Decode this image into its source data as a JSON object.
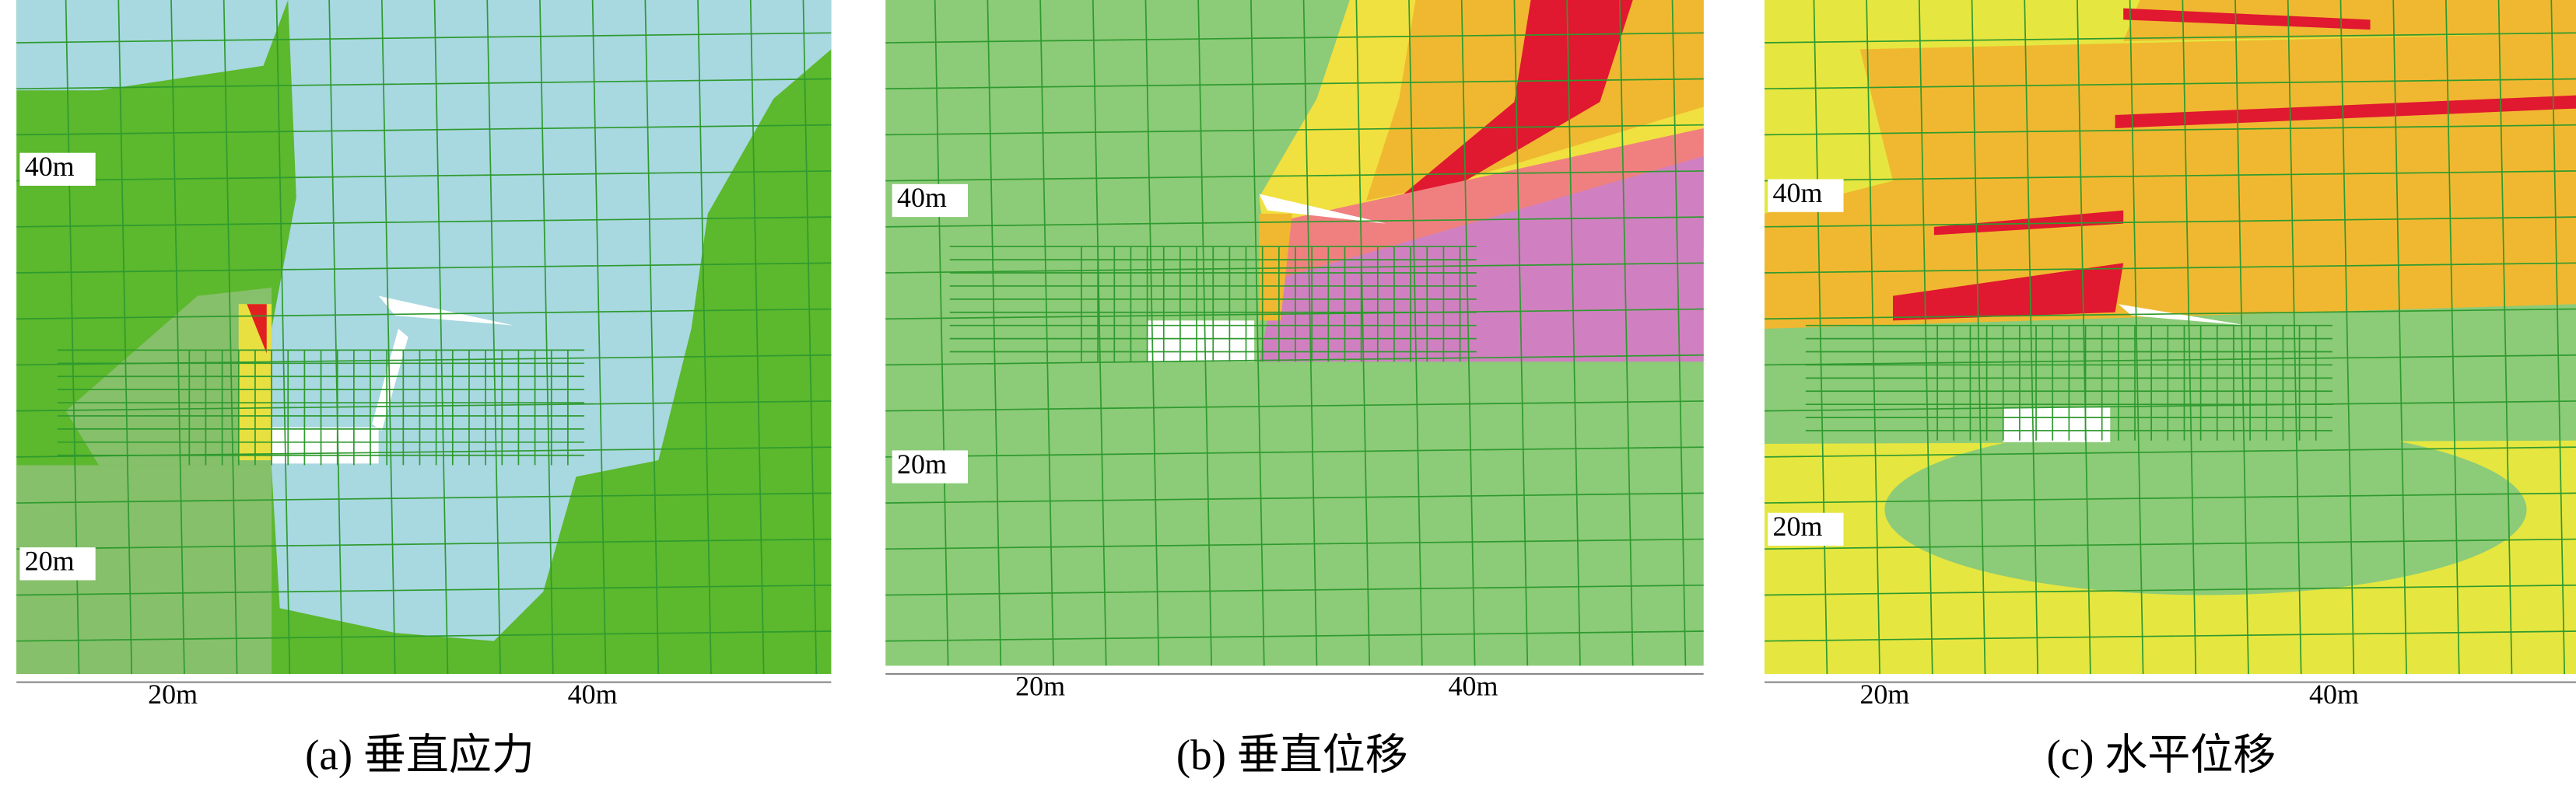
{
  "panels": [
    {
      "caption": "(a) 垂直应力",
      "left_labels": [
        "40m",
        "20m"
      ],
      "bottom_labels": [
        "20m",
        "40m"
      ]
    },
    {
      "caption": "(b) 垂直位移",
      "left_labels": [
        "40m",
        "20m"
      ],
      "bottom_labels": [
        "20m",
        "40m"
      ]
    },
    {
      "caption": "(c) 水平位移",
      "left_labels": [
        "40m",
        "20m"
      ],
      "bottom_labels": [
        "20m",
        "40m"
      ]
    }
  ]
}
